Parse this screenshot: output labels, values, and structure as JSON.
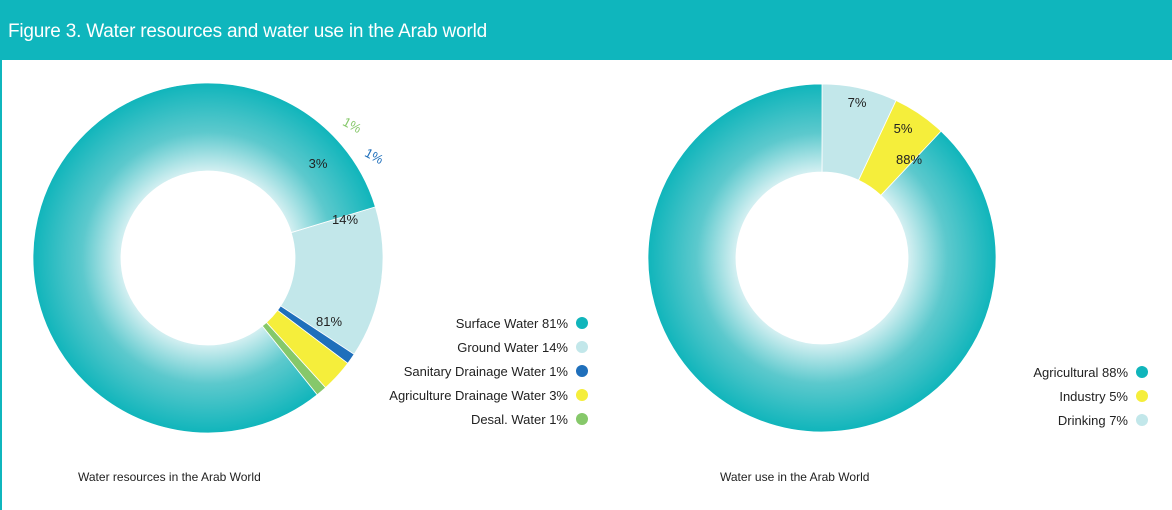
{
  "header": {
    "title": "Figure 3. Water resources and water use in the Arab world"
  },
  "colors": {
    "teal": "#10b5bb",
    "light_blue": "#c2e7ea",
    "dark_blue": "#1f6fbb",
    "yellow": "#f5ee3b",
    "green": "#86c86a"
  },
  "chart_data": [
    {
      "type": "pie",
      "donut": true,
      "caption": "Water resources in the Arab World",
      "slices": [
        {
          "label": "Surface Water 81%",
          "value": 81,
          "slice_label": "81%",
          "color": "#10b5bb"
        },
        {
          "label": "Ground Water 14%",
          "value": 14,
          "slice_label": "14%",
          "color": "#c2e7ea"
        },
        {
          "label": "Sanitary Drainage Water  1%",
          "value": 1,
          "slice_label": "1%",
          "color": "#1f6fbb"
        },
        {
          "label": "Agriculture Drainage Water 3%",
          "value": 3,
          "slice_label": "3%",
          "color": "#f5ee3b"
        },
        {
          "label": "Desal. Water 1%",
          "value": 1,
          "slice_label": "1%",
          "color": "#86c86a"
        }
      ],
      "legend_position": "right"
    },
    {
      "type": "pie",
      "donut": true,
      "caption": "Water use in the Arab World",
      "slices": [
        {
          "label": "Agricultural  88%",
          "value": 88,
          "slice_label": "88%",
          "color": "#10b5bb"
        },
        {
          "label": "Industry 5%",
          "value": 5,
          "slice_label": "5%",
          "color": "#f5ee3b"
        },
        {
          "label": "Drinking  7%",
          "value": 7,
          "slice_label": "7%",
          "color": "#c2e7ea"
        }
      ],
      "legend_position": "right"
    }
  ]
}
